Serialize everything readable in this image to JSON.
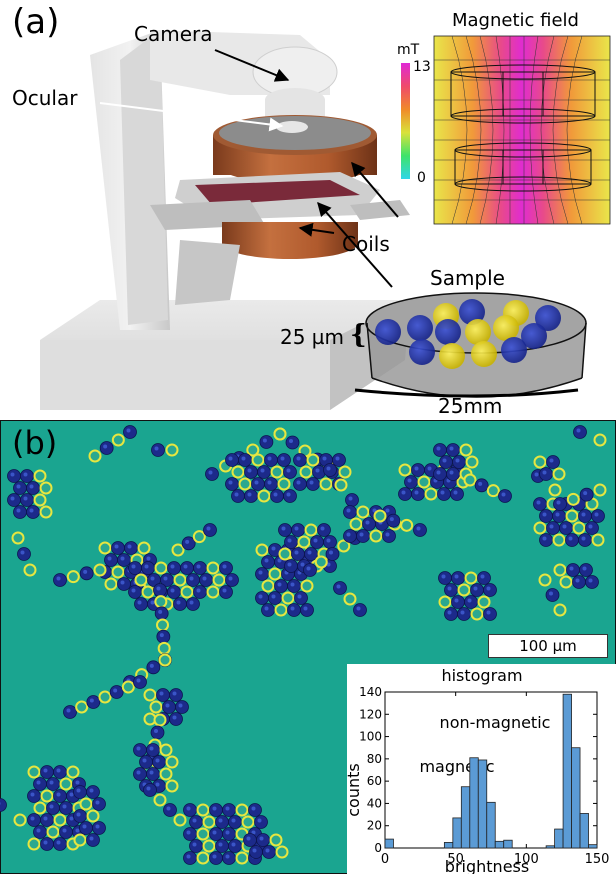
{
  "panel_a": {
    "label": "(a)",
    "camera": "Camera",
    "ocular": "Ocular",
    "coils": "Coils",
    "sample": "Sample",
    "thickness": "25 µm",
    "brace": "{",
    "diameter": "25mm",
    "field_title": "Magnetic field",
    "colorbar_unit": "mT",
    "colorbar_max": "13",
    "colorbar_min": "0"
  },
  "panel_b": {
    "label": "(b)",
    "scalebar": "100 µm",
    "hist_title": "histogram",
    "annot_nonmag": "non-magnetic",
    "annot_mag": "magnetic"
  },
  "chart_data": {
    "type": "bar",
    "title": "histogram",
    "xlabel": "brightness",
    "ylabel": "counts",
    "xlim": [
      0,
      150
    ],
    "ylim": [
      0,
      140
    ],
    "xticks": [
      "0",
      "50",
      "100",
      "150"
    ],
    "yticks": [
      "0",
      "20",
      "40",
      "60",
      "80",
      "100",
      "120",
      "140"
    ],
    "bin_width": 6,
    "x": [
      3,
      45,
      51,
      57,
      63,
      69,
      75,
      81,
      87,
      93,
      117,
      123,
      129,
      135,
      141,
      147
    ],
    "values": [
      8,
      5,
      27,
      55,
      81,
      79,
      41,
      6,
      7,
      0,
      2,
      17,
      138,
      90,
      31,
      3
    ],
    "annotations": [
      "non-magnetic",
      "magnetic"
    ]
  },
  "colors": {
    "background": "#1aa590",
    "magnetic_particle": "#1c2a8a",
    "nonmagnetic_ring": "#e7e640",
    "bar": "#5b9bd5",
    "coil": "#b45f34"
  }
}
